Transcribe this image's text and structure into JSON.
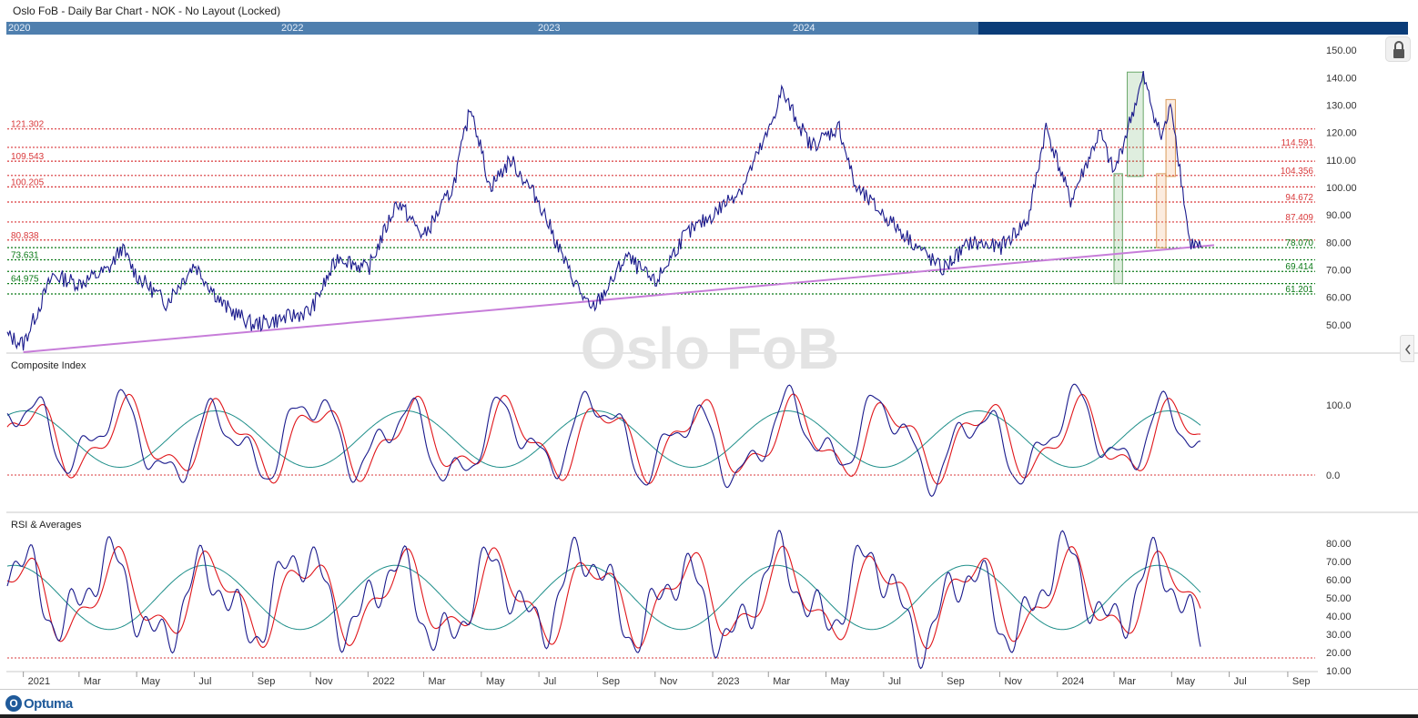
{
  "window": {
    "title": "Oslo FoB - Daily Bar Chart - NOK - No Layout (Locked)"
  },
  "overview": {
    "year_labels": [
      "2020",
      "2022",
      "2023",
      "2024"
    ]
  },
  "watermark": "Oslo FoB",
  "brand": {
    "logo_text": "Optuma"
  },
  "icons": {
    "lock": "lock-icon",
    "collapse": "chevron-left-icon"
  },
  "colors": {
    "price_line": "#1a1a8c",
    "trend_line": "#c77dd9",
    "resistance": "#d9393b",
    "support": "#0b7a17",
    "ma_fast": "#e0161b",
    "ma_slow": "#1f8f8a"
  },
  "chart_data": [
    {
      "type": "line",
      "panel": "price",
      "x_axis": {
        "type": "date",
        "range": [
          "2020-12-15",
          "2024-09-30"
        ],
        "tick_labels": [
          "2021",
          "Mar",
          "May",
          "Jul",
          "Sep",
          "Nov",
          "2022",
          "Mar",
          "May",
          "Jul",
          "Sep",
          "Nov",
          "2023",
          "Mar",
          "May",
          "Jul",
          "Sep",
          "Nov",
          "2024",
          "Mar",
          "May",
          "Jul",
          "Sep"
        ]
      },
      "y_axis": {
        "range": [
          40,
          155
        ],
        "tick_labels": [
          "50.00",
          "60.00",
          "70.00",
          "80.00",
          "90.00",
          "100.00",
          "110.00",
          "120.00",
          "130.00",
          "140.00",
          "150.00"
        ]
      },
      "resistance_levels_left": [
        "121.302",
        "109.543",
        "100.205",
        "80.838"
      ],
      "resistance_levels_right": [
        "114.591",
        "104.356",
        "94.672",
        "87.409"
      ],
      "support_levels_left": [
        "73.631",
        "64.975"
      ],
      "support_levels_right": [
        "78.070",
        "69.414",
        "61.201"
      ],
      "series": [
        {
          "points": [
            [
              "2020-12-15",
              46
            ],
            [
              "2021-01-01",
              43
            ],
            [
              "2021-02-01",
              68
            ],
            [
              "2021-03-01",
              65
            ],
            [
              "2021-04-01",
              70
            ],
            [
              "2021-04-15",
              78
            ],
            [
              "2021-05-01",
              68
            ],
            [
              "2021-06-01",
              58
            ],
            [
              "2021-07-01",
              72
            ],
            [
              "2021-08-01",
              57
            ],
            [
              "2021-09-01",
              50
            ],
            [
              "2021-10-01",
              52
            ],
            [
              "2021-11-01",
              55
            ],
            [
              "2021-12-01",
              75
            ],
            [
              "2022-01-01",
              70
            ],
            [
              "2022-02-01",
              95
            ],
            [
              "2022-03-01",
              82
            ],
            [
              "2022-04-01",
              100
            ],
            [
              "2022-04-20",
              130
            ],
            [
              "2022-05-10",
              100
            ],
            [
              "2022-06-01",
              110
            ],
            [
              "2022-07-01",
              95
            ],
            [
              "2022-08-01",
              70
            ],
            [
              "2022-08-25",
              55
            ],
            [
              "2022-09-15",
              65
            ],
            [
              "2022-10-01",
              75
            ],
            [
              "2022-11-01",
              65
            ],
            [
              "2022-12-01",
              82
            ],
            [
              "2023-01-01",
              90
            ],
            [
              "2023-02-01",
              100
            ],
            [
              "2023-03-01",
              120
            ],
            [
              "2023-03-15",
              135
            ],
            [
              "2023-04-15",
              115
            ],
            [
              "2023-05-15",
              122
            ],
            [
              "2023-06-01",
              100
            ],
            [
              "2023-07-01",
              90
            ],
            [
              "2023-08-01",
              80
            ],
            [
              "2023-09-01",
              70
            ],
            [
              "2023-10-01",
              80
            ],
            [
              "2023-11-01",
              78
            ],
            [
              "2023-12-01",
              88
            ],
            [
              "2023-12-20",
              122
            ],
            [
              "2024-01-15",
              95
            ],
            [
              "2024-02-15",
              120
            ],
            [
              "2024-03-01",
              105
            ],
            [
              "2024-04-01",
              140
            ],
            [
              "2024-04-20",
              118
            ],
            [
              "2024-05-01",
              130
            ],
            [
              "2024-05-20",
              80
            ],
            [
              "2024-06-01",
              78
            ]
          ]
        }
      ]
    },
    {
      "type": "line",
      "panel": "indicator",
      "title": "Composite Index",
      "y_axis": {
        "tick_labels": [
          "100.0",
          "0.0"
        ]
      },
      "reference_value": 0
    },
    {
      "type": "line",
      "panel": "indicator",
      "title": "RSI & Averages",
      "y_axis": {
        "range": [
          10,
          85
        ],
        "tick_labels": [
          "80.00",
          "70.00",
          "60.00",
          "50.00",
          "40.00",
          "30.00",
          "20.00",
          "10.00"
        ]
      },
      "reference_value": 17
    }
  ]
}
